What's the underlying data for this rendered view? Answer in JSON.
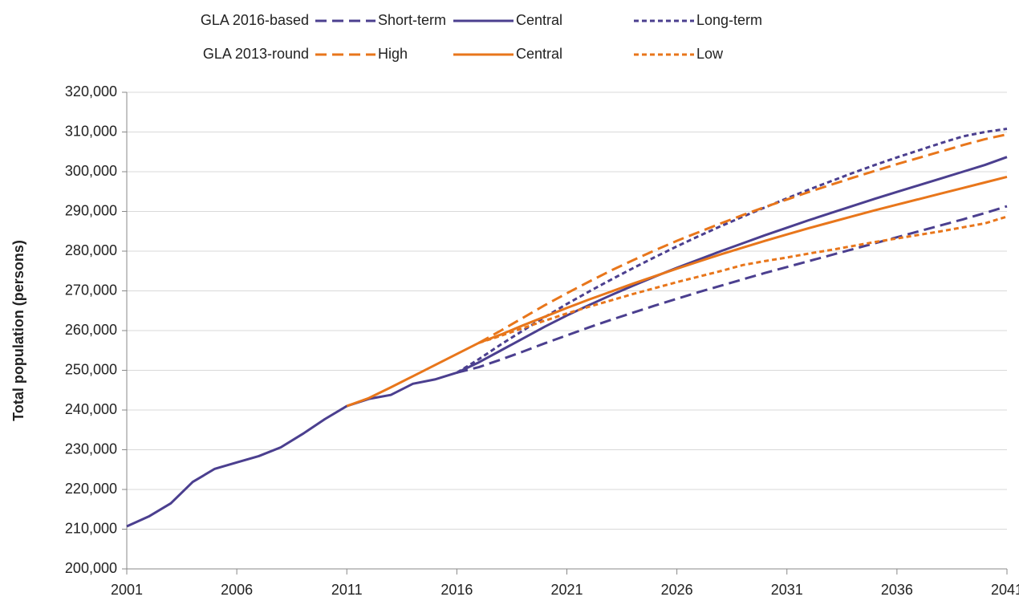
{
  "chart_data": {
    "type": "line",
    "y_label": "Total population (persons)",
    "legend_groups": [
      "GLA 2016-based",
      "GLA 2013-round"
    ],
    "x": [
      2001,
      2002,
      2003,
      2004,
      2005,
      2006,
      2007,
      2008,
      2009,
      2010,
      2011,
      2012,
      2013,
      2014,
      2015,
      2016,
      2017,
      2018,
      2019,
      2020,
      2021,
      2022,
      2023,
      2024,
      2025,
      2026,
      2027,
      2028,
      2029,
      2030,
      2031,
      2032,
      2033,
      2034,
      2035,
      2036,
      2037,
      2038,
      2039,
      2040,
      2041
    ],
    "series": [
      {
        "name": "Short-term",
        "color": "#4b3f8f",
        "line_style": "dashed",
        "values": [
          null,
          null,
          null,
          null,
          null,
          null,
          null,
          null,
          null,
          null,
          null,
          null,
          null,
          null,
          null,
          249400,
          250800,
          252700,
          254700,
          256800,
          258800,
          260800,
          262700,
          264500,
          266300,
          268000,
          269700,
          271300,
          272900,
          274500,
          276000,
          277500,
          279000,
          280500,
          282000,
          283500,
          285000,
          286500,
          288000,
          289600,
          291300
        ]
      },
      {
        "name": "Central",
        "color": "#4b3f8f",
        "line_style": "solid",
        "values": [
          210700,
          213200,
          216500,
          221900,
          225200,
          226800,
          228400,
          230600,
          234000,
          237700,
          241000,
          242800,
          243800,
          246600,
          247700,
          249400,
          252000,
          255000,
          258000,
          261000,
          263800,
          266400,
          268900,
          271300,
          273600,
          275800,
          277900,
          280000,
          282000,
          284000,
          285900,
          287800,
          289600,
          291400,
          293200,
          294900,
          296600,
          298300,
          300000,
          301700,
          303700
        ]
      },
      {
        "name": "Long-term",
        "color": "#4b3f8f",
        "line_style": "dotted",
        "values": [
          null,
          null,
          null,
          null,
          null,
          null,
          null,
          null,
          null,
          null,
          null,
          null,
          null,
          null,
          null,
          249400,
          252800,
          256500,
          260000,
          263400,
          266700,
          269800,
          272800,
          275700,
          278500,
          281200,
          283800,
          286300,
          288700,
          291000,
          293300,
          295500,
          297600,
          299700,
          301700,
          303600,
          305400,
          307200,
          308900,
          310000,
          310800
        ]
      },
      {
        "name": "High",
        "color": "#e8761b",
        "line_style": "dashed",
        "values": [
          null,
          null,
          null,
          null,
          null,
          null,
          null,
          null,
          null,
          null,
          null,
          null,
          null,
          null,
          null,
          null,
          256900,
          260000,
          263200,
          266400,
          269400,
          272300,
          275100,
          277700,
          280200,
          282600,
          284800,
          287000,
          289100,
          291100,
          293000,
          294900,
          296700,
          298500,
          300200,
          301900,
          303500,
          305100,
          306700,
          308200,
          309400
        ]
      },
      {
        "name": "Central",
        "color": "#e8761b",
        "line_style": "solid",
        "values": [
          null,
          null,
          null,
          null,
          null,
          null,
          null,
          null,
          null,
          null,
          241000,
          243000,
          245700,
          248500,
          251300,
          254100,
          256900,
          259000,
          261300,
          263500,
          265700,
          267800,
          269800,
          271800,
          273700,
          275600,
          277400,
          279200,
          280900,
          282600,
          284200,
          285800,
          287300,
          288800,
          290300,
          291700,
          293100,
          294500,
          295900,
          297300,
          298700
        ]
      },
      {
        "name": "Low",
        "color": "#e8761b",
        "line_style": "dotted",
        "values": [
          null,
          null,
          null,
          null,
          null,
          null,
          null,
          null,
          null,
          null,
          null,
          null,
          null,
          null,
          null,
          null,
          256900,
          258700,
          260600,
          262500,
          264300,
          266000,
          267600,
          269200,
          270700,
          272200,
          273600,
          275000,
          276500,
          277500,
          278400,
          279400,
          280300,
          281300,
          282300,
          283200,
          284100,
          285000,
          286000,
          287000,
          288700
        ]
      }
    ],
    "xlim": [
      2001,
      2041
    ],
    "xticks": [
      2001,
      2006,
      2011,
      2016,
      2021,
      2026,
      2031,
      2036,
      2041
    ],
    "ylim": [
      200000,
      320000
    ],
    "yticks": [
      {
        "value": 200000,
        "label": "200,000"
      },
      {
        "value": 210000,
        "label": "210,000"
      },
      {
        "value": 220000,
        "label": "220,000"
      },
      {
        "value": 230000,
        "label": "230,000"
      },
      {
        "value": 240000,
        "label": "240,000"
      },
      {
        "value": 250000,
        "label": "250,000"
      },
      {
        "value": 260000,
        "label": "260,000"
      },
      {
        "value": 270000,
        "label": "270,000"
      },
      {
        "value": 280000,
        "label": "280,000"
      },
      {
        "value": 290000,
        "label": "290,000"
      },
      {
        "value": 300000,
        "label": "300,000"
      },
      {
        "value": 310000,
        "label": "310,000"
      },
      {
        "value": 320000,
        "label": "320,000"
      }
    ],
    "grid": true
  }
}
